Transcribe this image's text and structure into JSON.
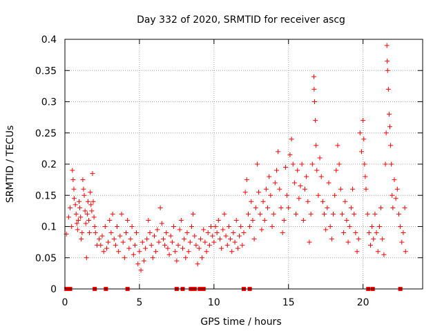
{
  "chart_data": {
    "type": "scatter",
    "title": "Day 332 of 2020, SRMTID for receiver ascg",
    "xlabel": "GPS time / hours",
    "ylabel": "SRMTID / TECUs",
    "xlim": [
      0,
      24
    ],
    "ylim": [
      0,
      0.4
    ],
    "xticks": [
      0,
      5,
      10,
      15,
      20
    ],
    "yticks": [
      0,
      0.05,
      0.1,
      0.15,
      0.2,
      0.25,
      0.3,
      0.35,
      0.4
    ],
    "xtick_labels": [
      "0",
      "5",
      "10",
      "15",
      "20"
    ],
    "ytick_labels": [
      "0",
      "0.05",
      "0.1",
      "0.15",
      "0.2",
      "0.25",
      "0.3",
      "0.35",
      "0.4"
    ],
    "grid": true,
    "marker": "plus",
    "color": "#ff0000",
    "series": [
      {
        "name": "SRMTID",
        "points": [
          [
            0.1,
            0.088
          ],
          [
            0.25,
            0.115
          ],
          [
            0.35,
            0.13
          ],
          [
            0.45,
            0.1
          ],
          [
            0.5,
            0.19
          ],
          [
            0.55,
            0.175
          ],
          [
            0.6,
            0.16
          ],
          [
            0.62,
            0.145
          ],
          [
            0.7,
            0.135
          ],
          [
            0.75,
            0.12
          ],
          [
            0.8,
            0.105
          ],
          [
            0.85,
            0.095
          ],
          [
            0.9,
            0.11
          ],
          [
            0.95,
            0.14
          ],
          [
            1.0,
            0.13
          ],
          [
            1.05,
            0.115
          ],
          [
            1.1,
            0.08
          ],
          [
            1.15,
            0.09
          ],
          [
            1.2,
            0.175
          ],
          [
            1.25,
            0.16
          ],
          [
            1.3,
            0.15
          ],
          [
            1.35,
            0.125
          ],
          [
            1.4,
            0.105
          ],
          [
            1.45,
            0.05
          ],
          [
            1.5,
            0.12
          ],
          [
            1.55,
            0.14
          ],
          [
            1.6,
            0.11
          ],
          [
            1.65,
            0.09
          ],
          [
            1.7,
            0.155
          ],
          [
            1.75,
            0.135
          ],
          [
            1.8,
            0.125
          ],
          [
            1.85,
            0.185
          ],
          [
            1.9,
            0.14
          ],
          [
            1.95,
            0.115
          ],
          [
            2.0,
            0.1
          ],
          [
            2.05,
            0.09
          ],
          [
            2.15,
            0.07
          ],
          [
            2.3,
            0.08
          ],
          [
            2.4,
            0.07
          ],
          [
            2.5,
            0.085
          ],
          [
            2.6,
            0.06
          ],
          [
            2.7,
            0.1
          ],
          [
            2.8,
            0.065
          ],
          [
            2.9,
            0.075
          ],
          [
            3.0,
            0.11
          ],
          [
            3.1,
            0.09
          ],
          [
            3.2,
            0.12
          ],
          [
            3.3,
            0.08
          ],
          [
            3.4,
            0.07
          ],
          [
            3.5,
            0.1
          ],
          [
            3.6,
            0.06
          ],
          [
            3.7,
            0.085
          ],
          [
            3.8,
            0.12
          ],
          [
            3.9,
            0.075
          ],
          [
            4.0,
            0.05
          ],
          [
            4.1,
            0.09
          ],
          [
            4.2,
            0.11
          ],
          [
            4.3,
            0.065
          ],
          [
            4.4,
            0.08
          ],
          [
            4.5,
            0.1
          ],
          [
            4.6,
            0.055
          ],
          [
            4.7,
            0.07
          ],
          [
            4.8,
            0.09
          ],
          [
            4.9,
            0.04
          ],
          [
            5.0,
            0.06
          ],
          [
            5.1,
            0.03
          ],
          [
            5.2,
            0.075
          ],
          [
            5.3,
            0.045
          ],
          [
            5.4,
            0.065
          ],
          [
            5.5,
            0.08
          ],
          [
            5.6,
            0.11
          ],
          [
            5.7,
            0.09
          ],
          [
            5.8,
            0.07
          ],
          [
            5.9,
            0.05
          ],
          [
            6.0,
            0.085
          ],
          [
            6.1,
            0.06
          ],
          [
            6.2,
            0.095
          ],
          [
            6.3,
            0.075
          ],
          [
            6.4,
            0.13
          ],
          [
            6.5,
            0.105
          ],
          [
            6.6,
            0.08
          ],
          [
            6.7,
            0.07
          ],
          [
            6.8,
            0.09
          ],
          [
            6.9,
            0.065
          ],
          [
            7.0,
            0.055
          ],
          [
            7.1,
            0.085
          ],
          [
            7.2,
            0.075
          ],
          [
            7.3,
            0.1
          ],
          [
            7.4,
            0.06
          ],
          [
            7.5,
            0.045
          ],
          [
            7.6,
            0.07
          ],
          [
            7.7,
            0.095
          ],
          [
            7.8,
            0.11
          ],
          [
            7.9,
            0.065
          ],
          [
            8.0,
            0.08
          ],
          [
            8.1,
            0.05
          ],
          [
            8.2,
            0.09
          ],
          [
            8.3,
            0.06
          ],
          [
            8.4,
            0.075
          ],
          [
            8.5,
            0.1
          ],
          [
            8.6,
            0.12
          ],
          [
            8.7,
            0.085
          ],
          [
            8.8,
            0.07
          ],
          [
            8.9,
            0.04
          ],
          [
            9.0,
            0.065
          ],
          [
            9.1,
            0.08
          ],
          [
            9.2,
            0.05
          ],
          [
            9.3,
            0.095
          ],
          [
            9.4,
            0.075
          ],
          [
            9.5,
            0.06
          ],
          [
            9.6,
            0.09
          ],
          [
            9.7,
            0.07
          ],
          [
            9.8,
            0.1
          ],
          [
            9.9,
            0.085
          ],
          [
            10.0,
            0.075
          ],
          [
            10.1,
            0.1
          ],
          [
            10.2,
            0.09
          ],
          [
            10.3,
            0.11
          ],
          [
            10.4,
            0.08
          ],
          [
            10.5,
            0.065
          ],
          [
            10.6,
            0.095
          ],
          [
            10.7,
            0.12
          ],
          [
            10.8,
            0.085
          ],
          [
            10.9,
            0.07
          ],
          [
            11.0,
            0.1
          ],
          [
            11.1,
            0.08
          ],
          [
            11.2,
            0.06
          ],
          [
            11.3,
            0.09
          ],
          [
            11.4,
            0.075
          ],
          [
            11.5,
            0.11
          ],
          [
            11.6,
            0.065
          ],
          [
            11.7,
            0.085
          ],
          [
            11.8,
            0.1
          ],
          [
            11.9,
            0.07
          ],
          [
            12.0,
            0.09
          ],
          [
            12.1,
            0.155
          ],
          [
            12.2,
            0.175
          ],
          [
            12.3,
            0.12
          ],
          [
            12.4,
            0.1
          ],
          [
            12.5,
            0.14
          ],
          [
            12.6,
            0.11
          ],
          [
            12.7,
            0.08
          ],
          [
            12.8,
            0.13
          ],
          [
            12.9,
            0.2
          ],
          [
            13.0,
            0.155
          ],
          [
            13.1,
            0.12
          ],
          [
            13.2,
            0.095
          ],
          [
            13.3,
            0.14
          ],
          [
            13.4,
            0.11
          ],
          [
            13.5,
            0.16
          ],
          [
            13.6,
            0.13
          ],
          [
            13.7,
            0.18
          ],
          [
            13.8,
            0.15
          ],
          [
            13.9,
            0.1
          ],
          [
            14.0,
            0.12
          ],
          [
            14.1,
            0.17
          ],
          [
            14.2,
            0.19
          ],
          [
            14.3,
            0.22
          ],
          [
            14.4,
            0.16
          ],
          [
            14.5,
            0.13
          ],
          [
            14.6,
            0.09
          ],
          [
            14.7,
            0.11
          ],
          [
            14.8,
            0.195
          ],
          [
            14.9,
            0.15
          ],
          [
            15.0,
            0.13
          ],
          [
            15.1,
            0.215
          ],
          [
            15.2,
            0.24
          ],
          [
            15.3,
            0.2
          ],
          [
            15.4,
            0.17
          ],
          [
            15.5,
            0.12
          ],
          [
            15.6,
            0.19
          ],
          [
            15.7,
            0.145
          ],
          [
            15.8,
            0.165
          ],
          [
            15.9,
            0.2
          ],
          [
            16.0,
            0.11
          ],
          [
            16.1,
            0.16
          ],
          [
            16.2,
            0.18
          ],
          [
            16.3,
            0.14
          ],
          [
            16.4,
            0.075
          ],
          [
            16.5,
            0.12
          ],
          [
            16.6,
            0.2
          ],
          [
            16.7,
            0.34
          ],
          [
            16.72,
            0.32
          ],
          [
            16.75,
            0.3
          ],
          [
            16.8,
            0.27
          ],
          [
            16.85,
            0.23
          ],
          [
            16.9,
            0.19
          ],
          [
            17.0,
            0.15
          ],
          [
            17.1,
            0.21
          ],
          [
            17.2,
            0.18
          ],
          [
            17.3,
            0.14
          ],
          [
            17.4,
            0.12
          ],
          [
            17.5,
            0.095
          ],
          [
            17.6,
            0.13
          ],
          [
            17.7,
            0.17
          ],
          [
            17.8,
            0.1
          ],
          [
            17.9,
            0.08
          ],
          [
            18.0,
            0.12
          ],
          [
            18.1,
            0.15
          ],
          [
            18.2,
            0.19
          ],
          [
            18.3,
            0.23
          ],
          [
            18.4,
            0.2
          ],
          [
            18.5,
            0.16
          ],
          [
            18.6,
            0.12
          ],
          [
            18.7,
            0.09
          ],
          [
            18.8,
            0.14
          ],
          [
            18.9,
            0.11
          ],
          [
            19.0,
            0.075
          ],
          [
            19.1,
            0.1
          ],
          [
            19.2,
            0.13
          ],
          [
            19.3,
            0.16
          ],
          [
            19.4,
            0.12
          ],
          [
            19.5,
            0.09
          ],
          [
            19.6,
            0.06
          ],
          [
            19.7,
            0.08
          ],
          [
            19.8,
            0.25
          ],
          [
            19.9,
            0.22
          ],
          [
            20.0,
            0.27
          ],
          [
            20.05,
            0.24
          ],
          [
            20.1,
            0.2
          ],
          [
            20.15,
            0.18
          ],
          [
            20.2,
            0.16
          ],
          [
            20.3,
            0.12
          ],
          [
            20.4,
            0.09
          ],
          [
            20.5,
            0.07
          ],
          [
            20.6,
            0.1
          ],
          [
            20.7,
            0.08
          ],
          [
            20.8,
            0.12
          ],
          [
            20.9,
            0.09
          ],
          [
            21.0,
            0.06
          ],
          [
            21.1,
            0.1
          ],
          [
            21.2,
            0.13
          ],
          [
            21.3,
            0.08
          ],
          [
            21.4,
            0.055
          ],
          [
            21.5,
            0.2
          ],
          [
            21.55,
            0.25
          ],
          [
            21.6,
            0.39
          ],
          [
            21.62,
            0.365
          ],
          [
            21.65,
            0.35
          ],
          [
            21.7,
            0.32
          ],
          [
            21.75,
            0.28
          ],
          [
            21.8,
            0.26
          ],
          [
            21.85,
            0.23
          ],
          [
            21.9,
            0.2
          ],
          [
            21.95,
            0.15
          ],
          [
            22.0,
            0.13
          ],
          [
            22.1,
            0.175
          ],
          [
            22.2,
            0.145
          ],
          [
            22.3,
            0.16
          ],
          [
            22.4,
            0.12
          ],
          [
            22.5,
            0.1
          ],
          [
            22.6,
            0.075
          ],
          [
            22.7,
            0.09
          ],
          [
            22.8,
            0.13
          ],
          [
            22.85,
            0.06
          ]
        ]
      }
    ],
    "zero_points_x": [
      0.1,
      0.35,
      2.0,
      2.75,
      4.2,
      7.5,
      7.9,
      8.45,
      8.7,
      9.05,
      9.3,
      12.0,
      12.4,
      20.35,
      20.65,
      22.5
    ]
  }
}
